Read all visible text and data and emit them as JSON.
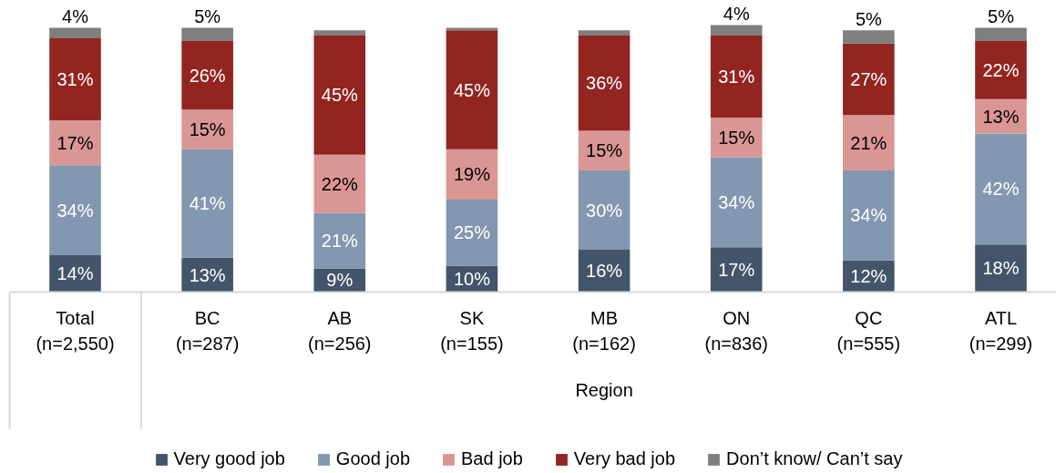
{
  "chart_data": {
    "type": "bar",
    "stacked": true,
    "legend": "bottom",
    "categories": [
      "Total\n(n=2,550)",
      "BC\n(n=287)",
      "AB\n(n=256)",
      "SK\n(n=155)",
      "MB\n(n=162)",
      "ON\n(n=836)",
      "QC\n(n=555)",
      "ATL\n(n=299)"
    ],
    "annotations": [
      "Region"
    ],
    "series": [
      {
        "name": "Very good job",
        "color": "#44546a",
        "values": [
          14,
          13,
          9,
          10,
          16,
          17,
          12,
          18
        ],
        "value_labels": [
          "14%",
          "13%",
          "9%",
          "10%",
          "16%",
          "17%",
          "12%",
          "18%"
        ]
      },
      {
        "name": "Good job",
        "color": "#8497b0",
        "values": [
          34,
          41,
          21,
          25,
          30,
          34,
          34,
          42
        ],
        "value_labels": [
          "34%",
          "41%",
          "21%",
          "25%",
          "30%",
          "34%",
          "34%",
          "42%"
        ]
      },
      {
        "name": "Bad job",
        "color": "#da9694",
        "values": [
          17,
          15,
          22,
          19,
          15,
          15,
          21,
          13
        ],
        "value_labels": [
          "17%",
          "15%",
          "22%",
          "19%",
          "15%",
          "15%",
          "21%",
          "13%"
        ]
      },
      {
        "name": "Very bad job",
        "color": "#922520",
        "values": [
          31,
          26,
          45,
          45,
          36,
          31,
          27,
          22
        ],
        "value_labels": [
          "31%",
          "26%",
          "45%",
          "45%",
          "36%",
          "31%",
          "27%",
          "22%"
        ]
      },
      {
        "name": "Don’t know/ Can’t say",
        "color": "#7f7f7f",
        "values": [
          4,
          5,
          2,
          1,
          2,
          4,
          5,
          5
        ],
        "value_labels": [
          "4%",
          "5%",
          null,
          null,
          null,
          "4%",
          "5%",
          "5%"
        ]
      }
    ]
  }
}
